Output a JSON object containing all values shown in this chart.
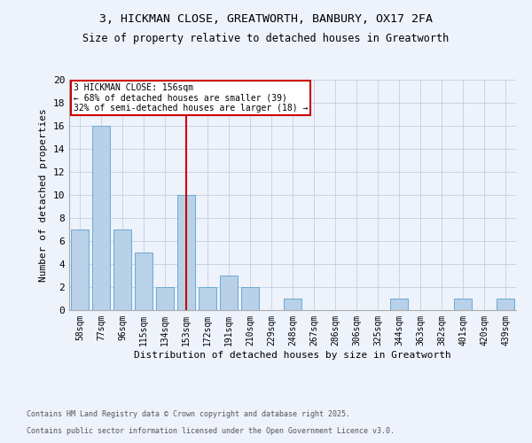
{
  "title_line1": "3, HICKMAN CLOSE, GREATWORTH, BANBURY, OX17 2FA",
  "title_line2": "Size of property relative to detached houses in Greatworth",
  "xlabel": "Distribution of detached houses by size in Greatworth",
  "ylabel": "Number of detached properties",
  "categories": [
    "58sqm",
    "77sqm",
    "96sqm",
    "115sqm",
    "134sqm",
    "153sqm",
    "172sqm",
    "191sqm",
    "210sqm",
    "229sqm",
    "248sqm",
    "267sqm",
    "286sqm",
    "306sqm",
    "325sqm",
    "344sqm",
    "363sqm",
    "382sqm",
    "401sqm",
    "420sqm",
    "439sqm"
  ],
  "values": [
    7,
    16,
    7,
    5,
    2,
    10,
    2,
    3,
    2,
    0,
    1,
    0,
    0,
    0,
    0,
    1,
    0,
    0,
    1,
    0,
    1
  ],
  "bar_color": "#b8d0e8",
  "bar_edge_color": "#6aaad4",
  "reference_line_index": 5,
  "reference_label": "3 HICKMAN CLOSE: 156sqm",
  "annotation_left": "← 68% of detached houses are smaller (39)",
  "annotation_right": "32% of semi-detached houses are larger (18) →",
  "vline_color": "#cc0000",
  "annotation_box_color": "#cc0000",
  "ylim": [
    0,
    20
  ],
  "yticks": [
    0,
    2,
    4,
    6,
    8,
    10,
    12,
    14,
    16,
    18,
    20
  ],
  "footnote1": "Contains HM Land Registry data © Crown copyright and database right 2025.",
  "footnote2": "Contains public sector information licensed under the Open Government Licence v3.0.",
  "background_color": "#eef2fb"
}
